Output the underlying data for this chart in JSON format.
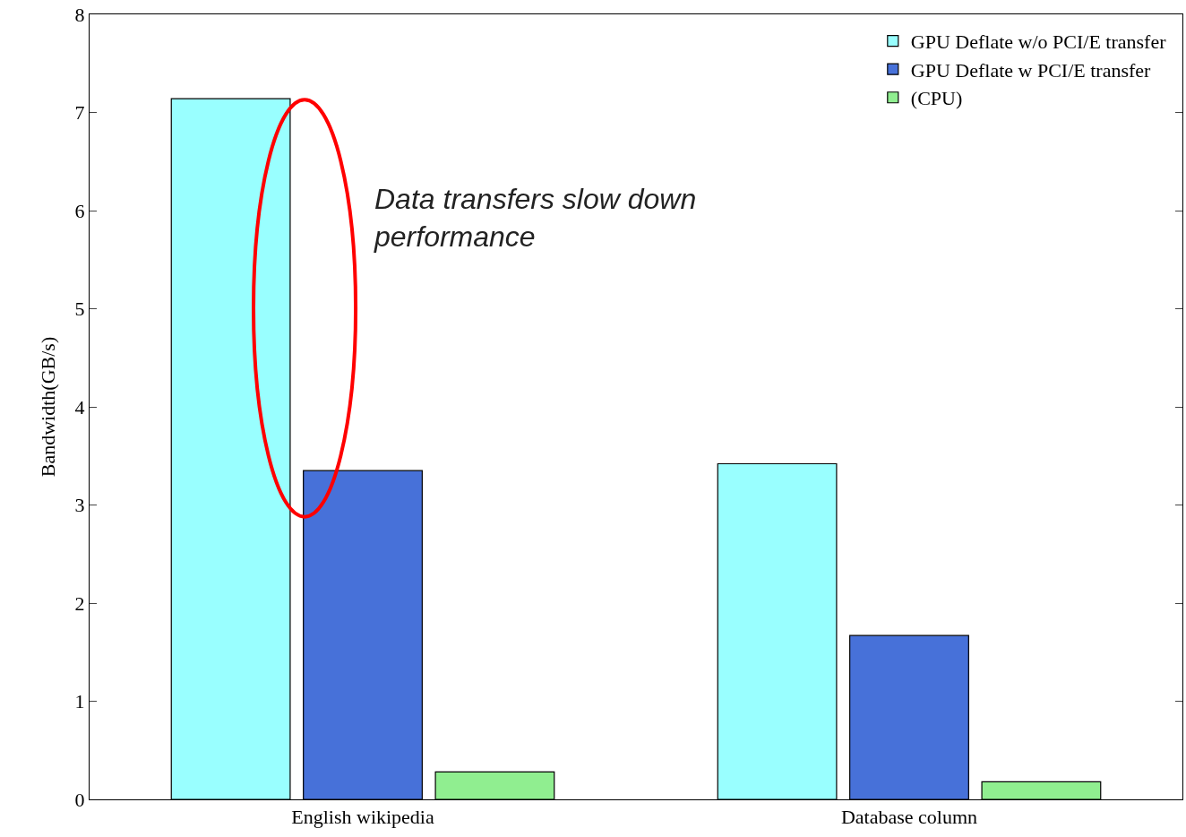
{
  "chart_data": {
    "type": "bar",
    "ylabel": "Bandwidth(GB/s)",
    "categories": [
      "English wikipedia",
      "Database column"
    ],
    "series": [
      {
        "name": "GPU Deflate w/o PCI/E transfer",
        "color": "#99ffff",
        "values": [
          7.14,
          3.42
        ]
      },
      {
        "name": "GPU Deflate w PCI/E transfer",
        "color": "#4771d9",
        "values": [
          3.35,
          1.67
        ]
      },
      {
        "name": "(CPU)",
        "color": "#90ee90",
        "values": [
          0.28,
          0.18
        ]
      }
    ],
    "ylim": [
      0,
      8
    ],
    "yticks": [
      0,
      1,
      2,
      3,
      4,
      5,
      6,
      7,
      8
    ],
    "legend": "top right",
    "annotations": [
      "Data transfers slow down performance"
    ]
  }
}
